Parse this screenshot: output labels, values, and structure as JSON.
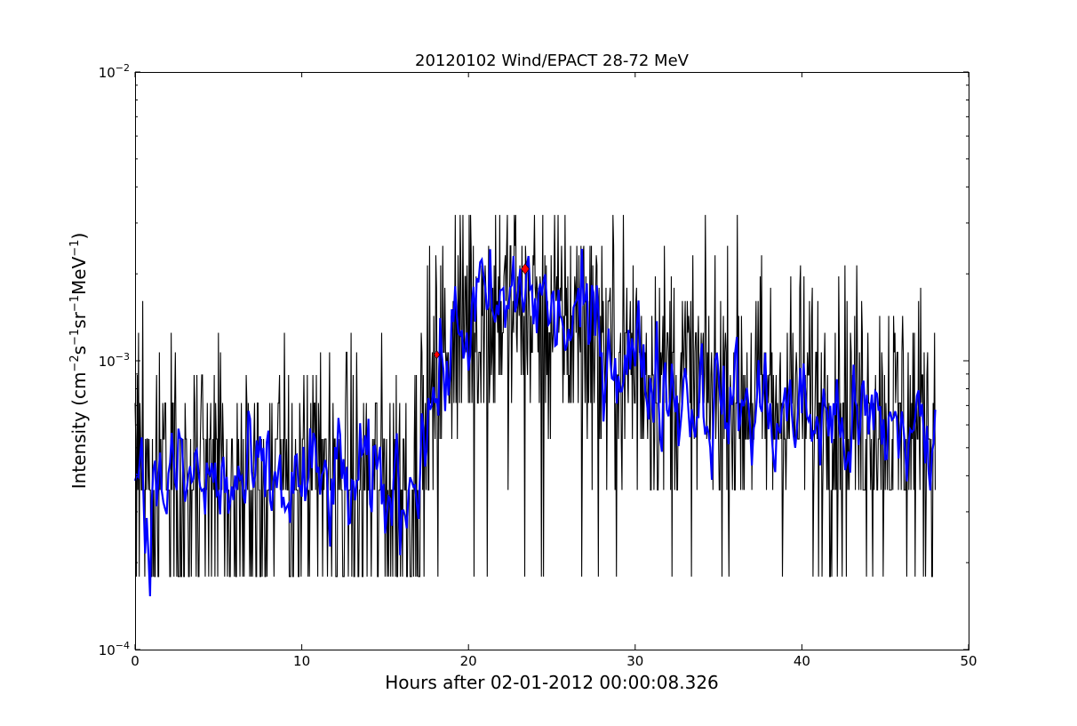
{
  "chart_data": {
    "type": "line",
    "title": "20120102 Wind/EPACT 28-72 MeV",
    "xlabel": "Hours after 02-01-2012 00:00:08.326",
    "ylabel": {
      "parts": [
        {
          "text": "Intensity (cm",
          "sup": false
        },
        {
          "text": "−2",
          "sup": true
        },
        {
          "text": "s",
          "sup": false
        },
        {
          "text": "−1",
          "sup": true
        },
        {
          "text": "sr",
          "sup": false
        },
        {
          "text": "−1",
          "sup": true
        },
        {
          "text": "MeV",
          "sup": false
        },
        {
          "text": "−1",
          "sup": true
        },
        {
          "text": ")",
          "sup": false
        }
      ]
    },
    "xlim": [
      0,
      50
    ],
    "ylim": [
      0.0001,
      0.01
    ],
    "yscale": "log",
    "grid": false,
    "xticks": [
      {
        "value": 0,
        "label": "0"
      },
      {
        "value": 10,
        "label": "10"
      },
      {
        "value": 20,
        "label": "20"
      },
      {
        "value": 30,
        "label": "30"
      },
      {
        "value": 40,
        "label": "40"
      },
      {
        "value": 50,
        "label": "50"
      }
    ],
    "yticks": [
      {
        "value": 0.0001,
        "base": "10",
        "exp": "−4"
      },
      {
        "value": 0.001,
        "base": "10",
        "exp": "−3"
      },
      {
        "value": 0.01,
        "base": "10",
        "exp": "−2"
      }
    ],
    "x_range_data": [
      0,
      48
    ],
    "series": [
      {
        "style": "raw-intensity",
        "color": "#000000",
        "quantized_levels": [
          0.000179,
          0.000357,
          0.000536,
          0.000714,
          0.000893,
          0.00107,
          0.00125,
          0.00143,
          0.00161,
          0.00179,
          0.00196,
          0.00214,
          0.00232,
          0.0025,
          0.0032
        ],
        "profile": [
          {
            "x": 0,
            "y": 0.00038
          },
          {
            "x": 16.5,
            "y": 0.00036
          },
          {
            "x": 17.5,
            "y": 0.0007
          },
          {
            "x": 18.5,
            "y": 0.00105
          },
          {
            "x": 20,
            "y": 0.0015
          },
          {
            "x": 23.4,
            "y": 0.0016
          },
          {
            "x": 25,
            "y": 0.0015
          },
          {
            "x": 28,
            "y": 0.0012
          },
          {
            "x": 32,
            "y": 0.00085
          },
          {
            "x": 40,
            "y": 0.0007
          },
          {
            "x": 48,
            "y": 0.00058
          }
        ]
      },
      {
        "style": "smoothed",
        "color": "#0000ff",
        "profile": [
          {
            "x": 0,
            "y": 0.00035
          },
          {
            "x": 0.3,
            "y": 0.0006
          },
          {
            "x": 0.6,
            "y": 0.0003
          },
          {
            "x": 2,
            "y": 0.0004
          },
          {
            "x": 5,
            "y": 0.00036
          },
          {
            "x": 8,
            "y": 0.00036
          },
          {
            "x": 12,
            "y": 0.00037
          },
          {
            "x": 16.2,
            "y": 0.00035
          },
          {
            "x": 17.3,
            "y": 0.0006
          },
          {
            "x": 18.3,
            "y": 0.00085
          },
          {
            "x": 19.5,
            "y": 0.0013
          },
          {
            "x": 20.5,
            "y": 0.0015
          },
          {
            "x": 22,
            "y": 0.0014
          },
          {
            "x": 23.4,
            "y": 0.0019
          },
          {
            "x": 25,
            "y": 0.0014
          },
          {
            "x": 27,
            "y": 0.0013
          },
          {
            "x": 29,
            "y": 0.0011
          },
          {
            "x": 32,
            "y": 0.00082
          },
          {
            "x": 36,
            "y": 0.0007
          },
          {
            "x": 40,
            "y": 0.00065
          },
          {
            "x": 44,
            "y": 0.00058
          },
          {
            "x": 46.5,
            "y": 0.0006
          },
          {
            "x": 48,
            "y": 0.00045
          }
        ]
      }
    ],
    "markers": [
      {
        "x": 18.1,
        "y": 0.00105,
        "color": "#ff0000",
        "shape": "diamond"
      },
      {
        "x": 23.4,
        "y": 0.00208,
        "color": "#ff0000",
        "shape": "diamond"
      }
    ]
  }
}
